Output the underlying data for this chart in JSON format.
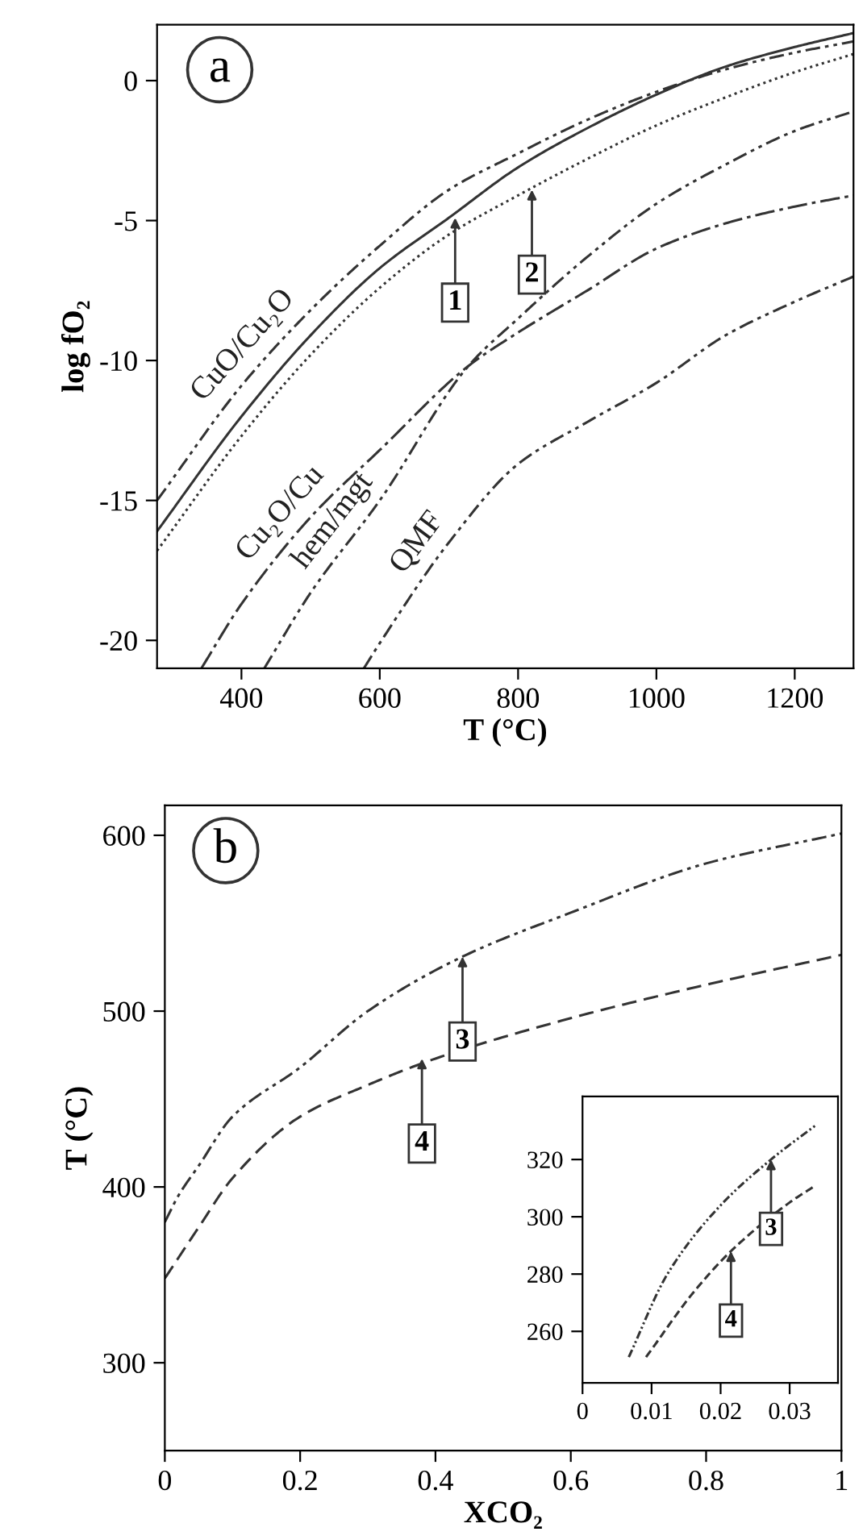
{
  "chart_data": [
    {
      "type": "line",
      "title": "a",
      "xlabel": "T (°C)",
      "ylabel": "log fO₂",
      "xlim": [
        278,
        1285
      ],
      "ylim": [
        -21,
        2
      ],
      "xticks": [
        400,
        600,
        800,
        1000,
        1200
      ],
      "yticks": [
        0,
        -5,
        -10,
        -15,
        -20
      ],
      "grid": false,
      "legend": false,
      "series": [
        {
          "name": "CuO/Cu₂O",
          "color": "#333333",
          "line_style": "dashdotdot",
          "x": [
            278,
            400,
            500,
            600,
            700,
            800,
            900,
            1000,
            1100,
            1200,
            1285
          ],
          "values": [
            -15.0,
            -10.9,
            -8.2,
            -5.9,
            -3.9,
            -2.6,
            -1.4,
            -0.4,
            0.4,
            1.0,
            1.4
          ]
        },
        {
          "color": "#333333",
          "line_style": "solid",
          "x": [
            278,
            400,
            500,
            600,
            700,
            800,
            900,
            1000,
            1100,
            1200,
            1285
          ],
          "values": [
            -16.1,
            -12.0,
            -9.1,
            -6.7,
            -4.9,
            -3.1,
            -1.7,
            -0.5,
            0.5,
            1.2,
            1.7
          ]
        },
        {
          "color": "#333333",
          "line_style": "dotted",
          "x": [
            278,
            400,
            500,
            600,
            700,
            800,
            900,
            1000,
            1100,
            1200,
            1285
          ],
          "values": [
            -16.8,
            -12.7,
            -9.8,
            -7.4,
            -5.5,
            -4.1,
            -2.8,
            -1.6,
            -0.6,
            0.3,
            0.95
          ]
        },
        {
          "name": "Cu₂O/Cu",
          "color": "#333333",
          "line_style": "dashdot",
          "x": [
            342,
            400,
            500,
            600,
            728,
            800,
            900,
            1000,
            1100,
            1200,
            1285
          ],
          "values": [
            -21,
            -18.7,
            -15.6,
            -13.2,
            -10.2,
            -9.0,
            -7.5,
            -6.0,
            -5.1,
            -4.5,
            -4.1
          ]
        },
        {
          "name": "hem/mgt",
          "color": "#333333",
          "line_style": "dashdotdot",
          "x": [
            433,
            500,
            600,
            728,
            800,
            900,
            1000,
            1100,
            1200,
            1285
          ],
          "values": [
            -21,
            -18.3,
            -15.0,
            -10.2,
            -8.5,
            -6.3,
            -4.4,
            -3.0,
            -1.8,
            -1.1
          ]
        },
        {
          "name": "QMF",
          "color": "#333333",
          "line_style": "dashdotdot",
          "x": [
            577,
            600,
            700,
            800,
            900,
            1000,
            1100,
            1200,
            1285
          ],
          "values": [
            -21,
            -20.1,
            -16.5,
            -13.7,
            -12.2,
            -10.8,
            -9.1,
            -7.9,
            -7.0
          ]
        }
      ],
      "annotations": [
        {
          "text": "1",
          "x": 709,
          "y": -4.9
        },
        {
          "text": "2",
          "x": 820,
          "y": -3.9
        }
      ]
    },
    {
      "type": "line",
      "title": "b",
      "xlabel": "XCO₂",
      "ylabel": "T (°C)",
      "xlim": [
        0,
        1
      ],
      "ylim": [
        250,
        617
      ],
      "xticks": [
        0,
        0.2,
        0.4,
        0.6,
        0.8,
        1
      ],
      "yticks": [
        300,
        400,
        500,
        600
      ],
      "grid": false,
      "legend": false,
      "series": [
        {
          "color": "#333333",
          "line_style": "dashdotdot",
          "x": [
            0,
            0.02,
            0.05,
            0.1,
            0.2,
            0.3,
            0.44,
            0.6,
            0.8,
            1.0
          ],
          "values": [
            380,
            395,
            412,
            440,
            468,
            500,
            531,
            556,
            584,
            601
          ]
        },
        {
          "color": "#333333",
          "line_style": "dashed",
          "x": [
            0,
            0.05,
            0.1,
            0.2,
            0.3,
            0.4,
            0.6,
            0.8,
            1.0
          ],
          "values": [
            348,
            377,
            405,
            440,
            458,
            473,
            496,
            515,
            532
          ]
        }
      ],
      "annotations": [
        {
          "text": "3",
          "x": 0.44,
          "y": 531
        },
        {
          "text": "4",
          "x": 0.38,
          "y": 473
        }
      ]
    },
    {
      "type": "line",
      "xlim": [
        0,
        0.037
      ],
      "ylim": [
        242,
        342
      ],
      "xticks": [
        0,
        0.01,
        0.02,
        0.03
      ],
      "yticks": [
        260,
        280,
        300,
        320
      ],
      "grid": false,
      "legend": false,
      "series": [
        {
          "color": "#333333",
          "line_style": "dashdotdot",
          "x": [
            0.0067,
            0.0123,
            0.02,
            0.0273,
            0.0338
          ],
          "values": [
            251,
            280,
            304,
            320,
            332
          ]
        },
        {
          "color": "#333333",
          "line_style": "dashed",
          "x": [
            0.0092,
            0.0162,
            0.0215,
            0.03,
            0.0338
          ],
          "values": [
            251,
            274,
            288,
            305,
            311
          ]
        }
      ],
      "annotations": [
        {
          "text": "3",
          "x": 0.0273,
          "y": 320
        },
        {
          "text": "4",
          "x": 0.0215,
          "y": 288
        }
      ]
    }
  ]
}
